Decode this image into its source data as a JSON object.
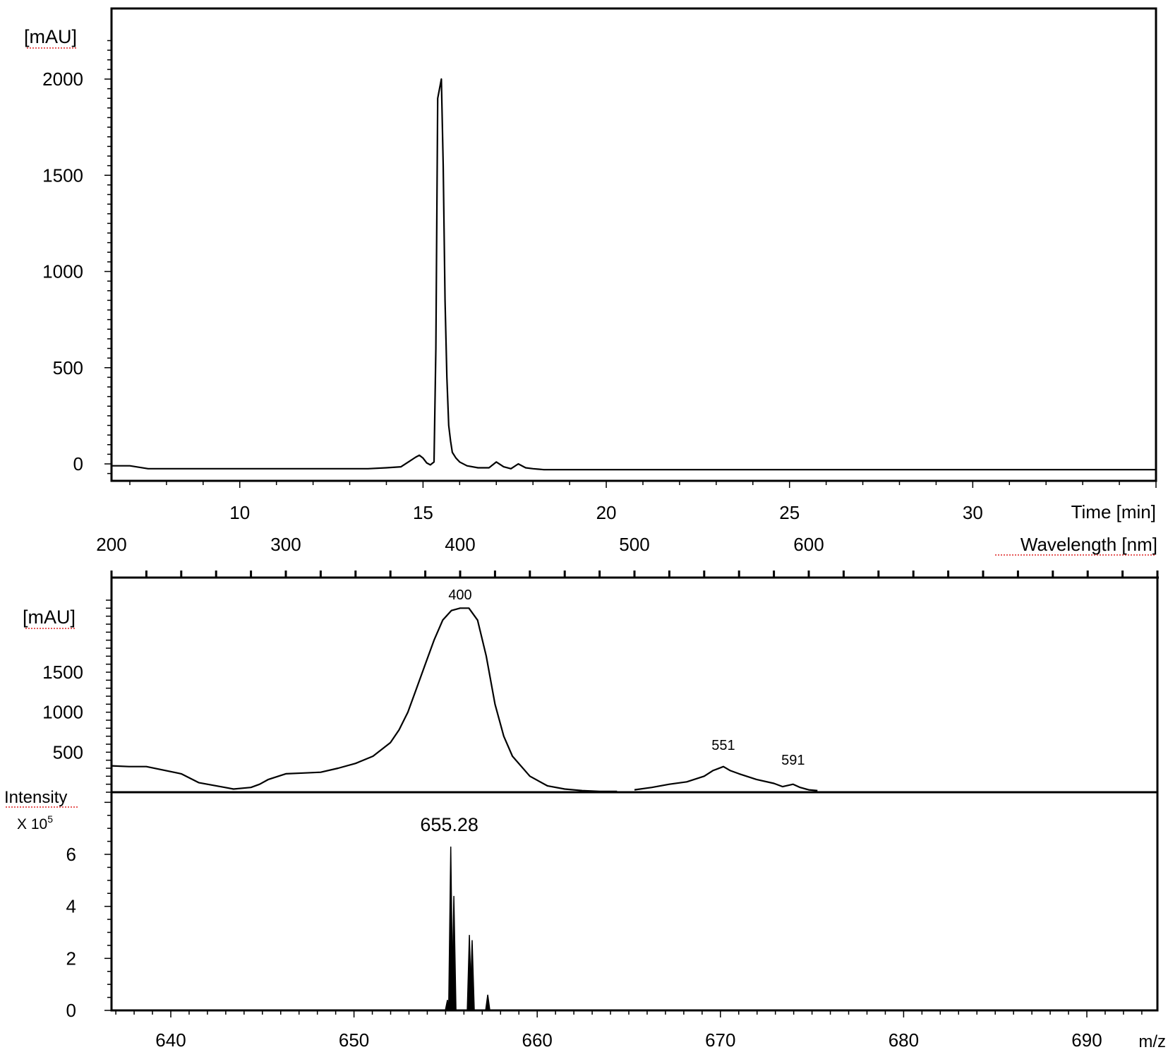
{
  "chart_data": [
    {
      "type": "line",
      "title": "",
      "ylabel": "[mAU]",
      "xlabel": "Time [min]",
      "xlim": [
        6.5,
        35
      ],
      "ylim": [
        -100,
        2250
      ],
      "x_ticks": [
        10,
        15,
        20,
        25,
        30
      ],
      "y_ticks": [
        0,
        500,
        1000,
        1500,
        2000
      ],
      "grid": false,
      "series": [
        {
          "x": [
            6.5,
            7.0,
            7.5,
            13.5,
            14.0,
            14.4,
            14.6,
            14.8,
            14.9,
            15.0,
            15.1,
            15.2,
            15.3,
            15.35,
            15.4,
            15.45,
            15.5,
            15.55,
            15.6,
            15.65,
            15.7,
            15.75,
            15.8,
            15.9,
            16.0,
            16.2,
            16.5,
            16.8,
            17.0,
            17.2,
            17.4,
            17.6,
            17.8,
            18.0,
            18.3,
            35.0
          ],
          "y": [
            -10,
            -10,
            -25,
            -25,
            -20,
            -15,
            10,
            35,
            45,
            30,
            5,
            -5,
            10,
            600,
            1900,
            1950,
            2000,
            1550,
            850,
            450,
            200,
            120,
            60,
            30,
            10,
            -10,
            -20,
            -20,
            10,
            -15,
            -25,
            0,
            -20,
            -25,
            -30,
            -30
          ]
        }
      ]
    },
    {
      "type": "line",
      "title": "",
      "ylabel": "[mAU]",
      "xlabel": "Wavelength [nm]",
      "xlim": [
        200,
        805
      ],
      "ylim": [
        0,
        2450
      ],
      "x_ticks": [
        200,
        300,
        400,
        500,
        600
      ],
      "y_ticks": [
        500,
        1000,
        1500
      ],
      "grid": false,
      "annotations": [
        {
          "x": 400,
          "text": "400"
        },
        {
          "x": 551,
          "text": "551"
        },
        {
          "x": 591,
          "text": "591"
        }
      ],
      "series": [
        {
          "x": [
            200,
            210,
            220,
            240,
            250,
            260,
            265,
            270,
            280,
            285,
            290,
            300,
            310,
            320,
            330,
            340,
            350,
            360,
            365,
            370,
            375,
            380,
            385,
            390,
            395,
            400,
            405,
            410,
            415,
            420,
            425,
            430,
            440,
            450,
            460,
            470,
            480,
            490,
            500,
            510,
            520,
            530,
            540,
            545,
            551,
            555,
            560,
            570,
            580,
            585,
            591,
            595,
            600,
            605
          ],
          "y": [
            330,
            320,
            320,
            230,
            120,
            80,
            60,
            40,
            60,
            100,
            160,
            230,
            240,
            250,
            300,
            360,
            450,
            620,
            780,
            1000,
            1300,
            1600,
            1900,
            2150,
            2270,
            2300,
            2300,
            2150,
            1700,
            1100,
            700,
            450,
            200,
            80,
            40,
            20,
            10,
            10,
            30,
            60,
            100,
            130,
            200,
            270,
            320,
            270,
            230,
            160,
            110,
            70,
            100,
            60,
            30,
            20
          ]
        }
      ]
    },
    {
      "type": "bar",
      "title": "",
      "ylabel": "Intensity",
      "ylabel_sub": "X 10",
      "ylabel_exp": "5",
      "xlabel": "m/z",
      "xlim": [
        636.8,
        694
      ],
      "ylim": [
        0,
        8.3
      ],
      "x_ticks": [
        640,
        650,
        660,
        670,
        680,
        690
      ],
      "y_ticks": [
        0,
        2,
        4,
        6
      ],
      "grid": false,
      "annotations": [
        {
          "x": 655.28,
          "text": "655.28"
        }
      ],
      "series": [
        {
          "x": [
            655.1,
            655.28,
            655.45,
            656.3,
            656.45,
            657.3
          ],
          "y": [
            0.4,
            6.3,
            4.4,
            2.9,
            2.7,
            0.6
          ]
        }
      ]
    }
  ]
}
